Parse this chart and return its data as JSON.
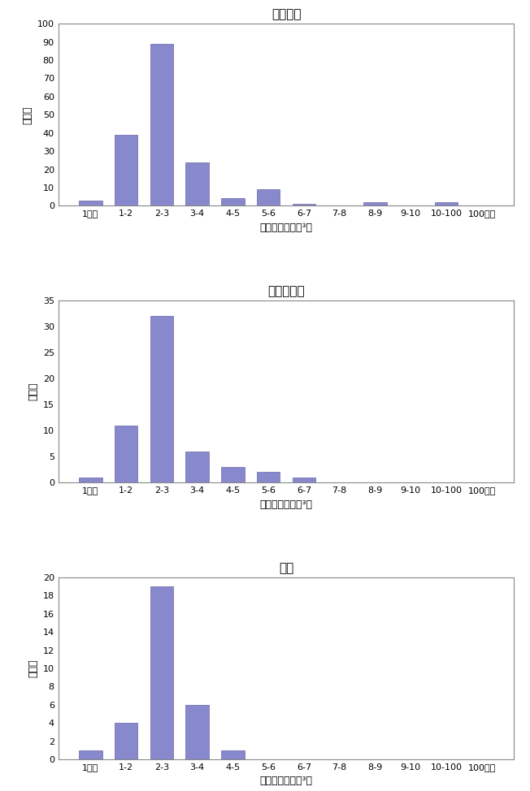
{
  "charts": [
    {
      "title": "一般環境",
      "values": [
        3,
        39,
        89,
        24,
        4,
        9,
        1,
        0,
        2,
        0,
        2,
        0
      ],
      "ylim": [
        0,
        100
      ],
      "yticks": [
        0,
        10,
        20,
        30,
        40,
        50,
        60,
        70,
        80,
        90,
        100
      ]
    },
    {
      "title": "発生源周辺",
      "values": [
        1,
        11,
        32,
        6,
        3,
        2,
        1,
        0,
        0,
        0,
        0,
        0
      ],
      "ylim": [
        0,
        35
      ],
      "yticks": [
        0,
        5,
        10,
        15,
        20,
        25,
        30,
        35
      ]
    },
    {
      "title": "沿道",
      "values": [
        1,
        4,
        19,
        6,
        1,
        0,
        0,
        0,
        0,
        0,
        0,
        0
      ],
      "ylim": [
        0,
        20
      ],
      "yticks": [
        0,
        2,
        4,
        6,
        8,
        10,
        12,
        14,
        16,
        18,
        20
      ]
    }
  ],
  "categories": [
    "1未満",
    "1-2",
    "2-3",
    "3-4",
    "4-5",
    "5-6",
    "6-7",
    "7-8",
    "8-9",
    "9-10",
    "10-100",
    "100以上"
  ],
  "bar_color": "#8888cc",
  "bar_edge_color": "#6666aa",
  "xlabel": "濃度（ｎｇ／ｍ³）",
  "ylabel": "地点数",
  "background_color": "#ffffff"
}
